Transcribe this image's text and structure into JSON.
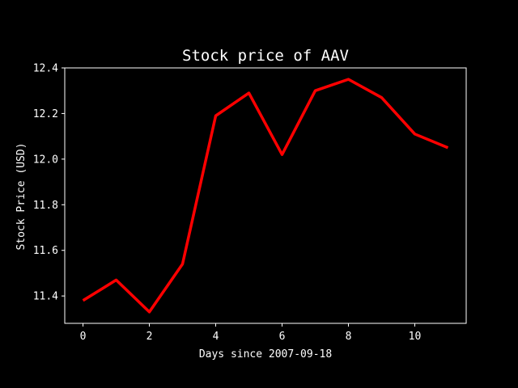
{
  "chart_data": {
    "type": "line",
    "title": "Stock price of AAV",
    "xlabel": "Days since 2007-09-18",
    "ylabel": "Stock Price (USD)",
    "x": [
      0,
      1,
      2,
      3,
      4,
      5,
      6,
      7,
      8,
      9,
      10,
      11
    ],
    "series": [
      {
        "values": [
          11.38,
          11.47,
          11.33,
          11.54,
          12.19,
          12.29,
          12.02,
          12.3,
          12.35,
          12.27,
          12.11,
          12.05
        ],
        "color": "#ff0000"
      }
    ],
    "xlim": [
      -0.55,
      11.55
    ],
    "ylim": [
      11.28,
      12.4
    ],
    "xticks": [
      0,
      2,
      4,
      6,
      8,
      10
    ],
    "xtick_labels": [
      "0",
      "2",
      "4",
      "6",
      "8",
      "10"
    ],
    "yticks": [
      11.4,
      11.6,
      11.8,
      12.0,
      12.2,
      12.4
    ],
    "ytick_labels": [
      "11.4",
      "11.6",
      "11.8",
      "12.0",
      "12.2",
      "12.4"
    ],
    "grid": false,
    "background": "#000000",
    "foreground": "#ffffff"
  }
}
